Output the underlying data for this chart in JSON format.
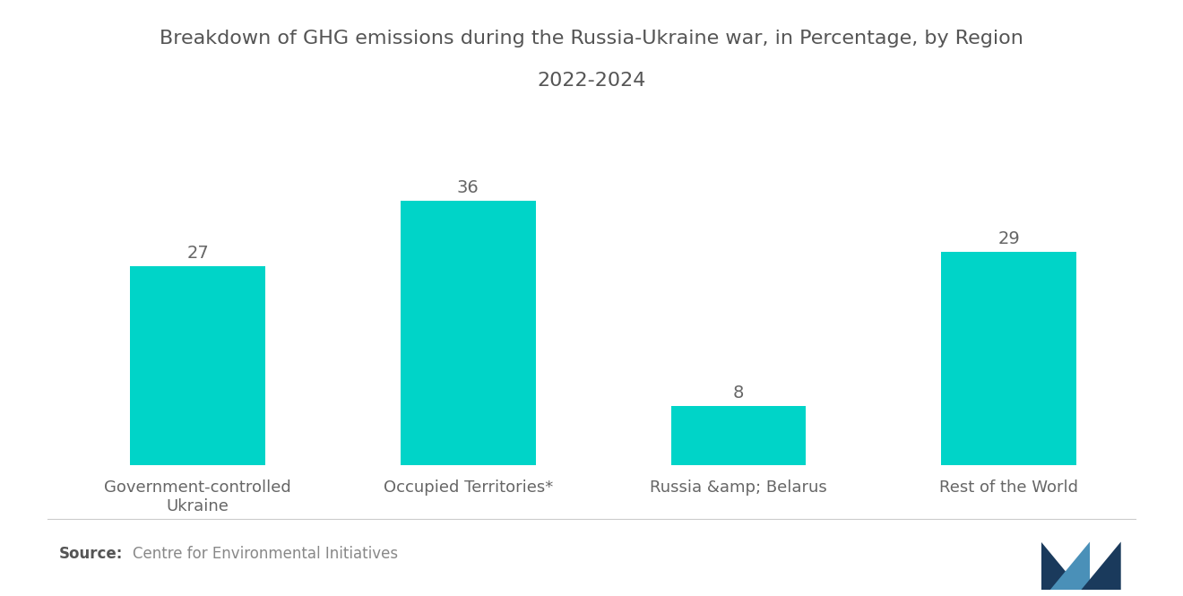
{
  "title_line1": "Breakdown of GHG emissions during the Russia-Ukraine war, in Percentage, by Region",
  "title_line2": "2022-2024",
  "categories": [
    "Government-controlled\nUkraine",
    "Occupied Territories*",
    "Russia &amp; Belarus",
    "Rest of the World"
  ],
  "values": [
    27,
    36,
    8,
    29
  ],
  "bar_color": "#00D4C8",
  "value_labels": [
    "27",
    "36",
    "8",
    "29"
  ],
  "source_bold": "Source:",
  "source_text": "Centre for Environmental Initiatives",
  "background_color": "#ffffff",
  "title_fontsize": 16,
  "label_fontsize": 13,
  "value_fontsize": 14,
  "source_fontsize": 12,
  "ylim": [
    0,
    43
  ],
  "bar_width": 0.5
}
